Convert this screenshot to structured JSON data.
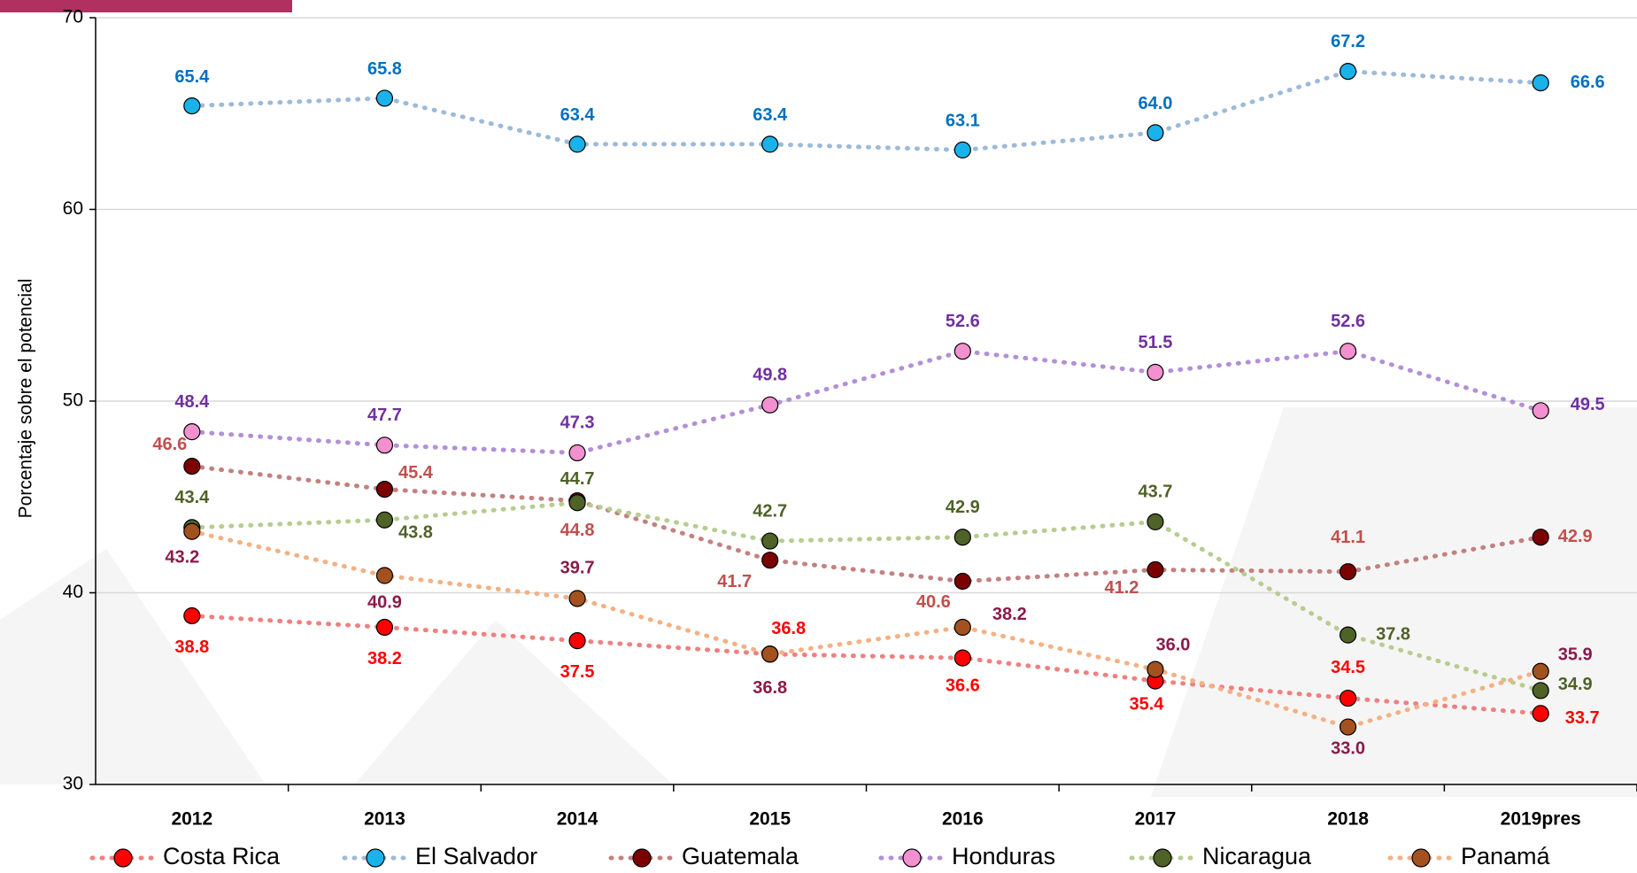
{
  "chart_data": {
    "type": "line",
    "y_label": "Porcentaje sobre el potencial",
    "categories": [
      "2012",
      "2013",
      "2014",
      "2015",
      "2016",
      "2017",
      "2018",
      "2019pres"
    ],
    "ylim": [
      30,
      70
    ],
    "yticks": [
      30,
      40,
      50,
      60,
      70
    ],
    "grid": true,
    "series": [
      {
        "name": "Costa Rica",
        "color": "#ff0000",
        "line_color": "#f08080",
        "label_color": "#ff0000",
        "values": [
          38.8,
          38.2,
          37.5,
          36.8,
          36.6,
          35.4,
          34.5,
          33.7
        ],
        "value_labels": [
          "38.8",
          "38.2",
          "37.5",
          "36.8",
          "36.6",
          "35.4",
          "34.5",
          "33.7"
        ]
      },
      {
        "name": "El Salvador",
        "color": "#1ab2ea",
        "line_color": "#9dbad9",
        "label_color": "#0070c0",
        "values": [
          65.4,
          65.8,
          63.4,
          63.4,
          63.1,
          64.0,
          67.2,
          66.6
        ],
        "value_labels": [
          "65.4",
          "65.8",
          "63.4",
          "63.4",
          "63.1",
          "64.0",
          "67.2",
          "66.6"
        ]
      },
      {
        "name": "Guatemala",
        "color": "#7b0000",
        "line_color": "#c48080",
        "label_color": "#c0504d",
        "values": [
          46.6,
          45.4,
          44.8,
          41.7,
          40.6,
          41.2,
          41.1,
          42.9
        ],
        "value_labels": [
          "46.6",
          "45.4",
          "44.8",
          "41.7",
          "40.6",
          "41.2",
          "41.1",
          "42.9"
        ]
      },
      {
        "name": "Honduras",
        "color": "#f290d0",
        "line_color": "#b48fd8",
        "label_color": "#7030a0",
        "values": [
          48.4,
          47.7,
          47.3,
          49.8,
          52.6,
          51.5,
          52.6,
          49.5
        ],
        "value_labels": [
          "48.4",
          "47.7",
          "47.3",
          "49.8",
          "52.6",
          "51.5",
          "52.6",
          "49.5"
        ]
      },
      {
        "name": "Nicaragua",
        "color": "#4f6228",
        "line_color": "#b6cd8f",
        "label_color": "#4f6228",
        "values": [
          43.4,
          43.8,
          44.7,
          42.7,
          42.9,
          43.7,
          37.8,
          34.9
        ],
        "value_labels": [
          "43.4",
          "43.8",
          "44.7",
          "42.7",
          "42.9",
          "43.7",
          "37.8",
          "34.9"
        ]
      },
      {
        "name": "Panamá",
        "color": "#a3521f",
        "line_color": "#f4b183",
        "label_color": "#8b1a4a",
        "values": [
          43.2,
          40.9,
          39.7,
          36.8,
          38.2,
          36.0,
          33.0,
          35.9
        ],
        "value_labels": [
          "43.2",
          "40.9",
          "39.7",
          "36.8",
          "38.2",
          "36.0",
          "33.0",
          "35.9"
        ]
      }
    ]
  }
}
